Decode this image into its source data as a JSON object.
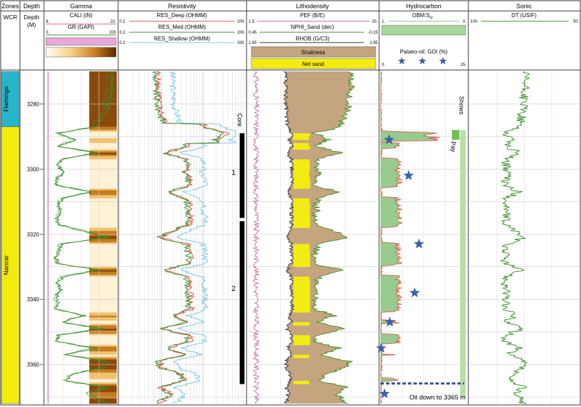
{
  "tracks": {
    "zones": "Zones",
    "depth": "Depth",
    "gamma": "Gamma",
    "resistivity": "Resistivity",
    "lithodensity": "Lithodensity",
    "hydrocarbon": "Hydrocarbon",
    "sonic": "Sonic"
  },
  "zones_header": {
    "wcr": "WCR"
  },
  "depth_header": {
    "label": "Depth",
    "unit": "(M)"
  },
  "gamma_header": {
    "cali": {
      "label": "CALI (IN)",
      "min": "8.",
      "max": "22."
    },
    "gr": {
      "label": "GR (GAPI)",
      "min": "0.",
      "max": "200"
    }
  },
  "resistivity_header": {
    "deep": {
      "label": "RES_Deep (OHMM)",
      "min": "0.2",
      "max": "200."
    },
    "med": {
      "label": "RES_Med (OHMM)",
      "min": "0.2",
      "max": "200."
    },
    "shallow": {
      "label": "RES_Shallow (OHMM)",
      "min": "0.2",
      "max": "200."
    }
  },
  "lithodensity_header": {
    "pef": {
      "label": "PEF (B/E)",
      "min": "1.5",
      "max": "20."
    },
    "nphi": {
      "label": "NPHI_Sand (dec)",
      "min": "0.45",
      "max": "−0.15"
    },
    "rhob": {
      "label": "RHOB (G/C3)",
      "min": "1.95",
      "max": "2.95"
    },
    "shaliness": "Shaliness",
    "netsand": "Net sand"
  },
  "hydrocarbon_header": {
    "obm": {
      "label": "OBM:S",
      "sub": "w",
      "min": "1.",
      "max": "0."
    },
    "goi": {
      "label": "Palaeo-oil: GOI (%)",
      "min": "0.",
      "max": "25."
    }
  },
  "sonic_header": {
    "dt": {
      "label": "DT (US/F)",
      "min": "100.",
      "max": "50."
    }
  },
  "annotations": {
    "core": "Core",
    "core1": "1",
    "core2": "2",
    "shows": "Shows",
    "pay": "Pay",
    "oil_down_to": "Oil down to 3365 m"
  },
  "zones": [
    {
      "name": "Flamingo",
      "top": 3270,
      "base": 3287,
      "color": "#29b5c9"
    },
    {
      "name": "Nancar",
      "top": 3287,
      "base": 3372,
      "color": "#f3ea10"
    }
  ],
  "colors": {
    "gamma_curve": "#3c8f2a",
    "cali_curve": "#c267a8",
    "res_deep": "#e0504a",
    "res_med": "#3c8f2a",
    "res_shallow": "#7ec8e8",
    "shaliness": "#c4a57f",
    "net_sand": "#f3ec12",
    "obm": "#86c27a",
    "goi_star": "#3a63a8",
    "sonic": "#3c8f2a",
    "pay_bar": "#b7dfa4",
    "oil_line": "#2f4f9a"
  },
  "chart_data": {
    "type": "line",
    "depth_axis": {
      "label": "Depth (M)",
      "range": [
        3270,
        3372
      ],
      "ticks": [
        3280,
        3300,
        3320,
        3340,
        3360
      ]
    },
    "core_intervals": [
      {
        "name": "1",
        "top": 3289,
        "base": 3315
      },
      {
        "name": "2",
        "top": 3316,
        "base": 3366
      }
    ],
    "pay": {
      "top": 3288,
      "base": 3370
    },
    "shows": {
      "top": 3288,
      "base": 3291
    },
    "oil_down_to": 3365,
    "goi_points": [
      {
        "depth": 3291,
        "goi": 2.6
      },
      {
        "depth": 3302,
        "goi": 8.4
      },
      {
        "depth": 3323,
        "goi": 11.5
      },
      {
        "depth": 3338,
        "goi": 10.2
      },
      {
        "depth": 3347,
        "goi": 2.8
      },
      {
        "depth": 3355,
        "goi": 0.2
      },
      {
        "depth": 3369,
        "goi": 1.2
      }
    ],
    "gr_profile": [
      [
        3270,
        160
      ],
      [
        3276,
        158
      ],
      [
        3281,
        150
      ],
      [
        3285,
        130
      ],
      [
        3287,
        120
      ],
      [
        3289,
        18
      ],
      [
        3291,
        70
      ],
      [
        3293,
        20
      ],
      [
        3295,
        125
      ],
      [
        3297,
        30
      ],
      [
        3299,
        22
      ],
      [
        3301,
        40
      ],
      [
        3303,
        20
      ],
      [
        3305,
        18
      ],
      [
        3307,
        110
      ],
      [
        3309,
        35
      ],
      [
        3311,
        20
      ],
      [
        3313,
        28
      ],
      [
        3315,
        18
      ],
      [
        3317,
        22
      ],
      [
        3319,
        90
      ],
      [
        3321,
        150
      ],
      [
        3323,
        30
      ],
      [
        3325,
        25
      ],
      [
        3327,
        18
      ],
      [
        3329,
        20
      ],
      [
        3331,
        130
      ],
      [
        3333,
        35
      ],
      [
        3335,
        20
      ],
      [
        3337,
        28
      ],
      [
        3339,
        18
      ],
      [
        3341,
        22
      ],
      [
        3343,
        15
      ],
      [
        3345,
        90
      ],
      [
        3347,
        30
      ],
      [
        3349,
        140
      ],
      [
        3351,
        25
      ],
      [
        3353,
        20
      ],
      [
        3355,
        120
      ],
      [
        3357,
        40
      ],
      [
        3359,
        150
      ],
      [
        3361,
        140
      ],
      [
        3363,
        60
      ],
      [
        3365,
        40
      ],
      [
        3367,
        150
      ],
      [
        3369,
        100
      ],
      [
        3372,
        150
      ]
    ]
  }
}
